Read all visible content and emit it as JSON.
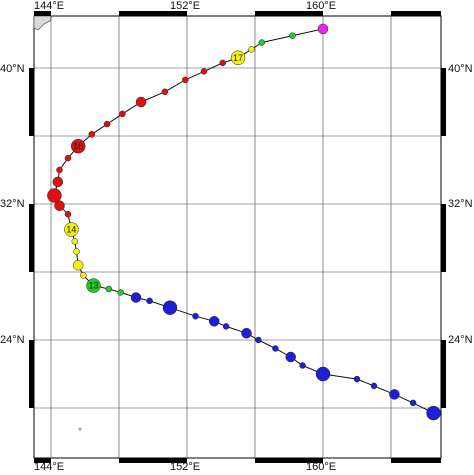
{
  "map": {
    "lon_range": [
      144,
      167
    ],
    "lat_range": [
      18,
      43
    ],
    "lon_labels": [
      "144°E",
      "152°E",
      "160°E"
    ],
    "lat_labels": [
      "40°N",
      "32°N",
      "24°N"
    ],
    "day_labels": [
      "13",
      "14",
      "16",
      "17"
    ],
    "colors": {
      "track": "#111111",
      "grid": "#444444",
      "frame": "#000000",
      "land": "#d9d9d9",
      "stages": {
        "blue": "#1f1fd6",
        "green": "#22cc22",
        "yellow": "#f2f20d",
        "red": "#dd1111",
        "magenta": "#ee22ee"
      }
    },
    "track": [
      {
        "lon": 166.5,
        "lat": 19.7,
        "color": "blue",
        "size": 3,
        "day_label": null
      },
      {
        "lon": 165.3,
        "lat": 20.3,
        "color": "blue",
        "size": 1,
        "day_label": null
      },
      {
        "lon": 164.2,
        "lat": 20.8,
        "color": "blue",
        "size": 2,
        "day_label": null
      },
      {
        "lon": 163.0,
        "lat": 21.3,
        "color": "blue",
        "size": 1,
        "day_label": null
      },
      {
        "lon": 162.0,
        "lat": 21.7,
        "color": "blue",
        "size": 1,
        "day_label": null
      },
      {
        "lon": 160.0,
        "lat": 22.0,
        "color": "blue",
        "size": 3,
        "day_label": null
      },
      {
        "lon": 158.8,
        "lat": 22.5,
        "color": "blue",
        "size": 1,
        "day_label": null
      },
      {
        "lon": 158.1,
        "lat": 23.0,
        "color": "blue",
        "size": 2,
        "day_label": null
      },
      {
        "lon": 157.2,
        "lat": 23.5,
        "color": "blue",
        "size": 1,
        "day_label": null
      },
      {
        "lon": 156.2,
        "lat": 24.0,
        "color": "blue",
        "size": 1,
        "day_label": null
      },
      {
        "lon": 155.5,
        "lat": 24.4,
        "color": "blue",
        "size": 2,
        "day_label": null
      },
      {
        "lon": 154.3,
        "lat": 24.8,
        "color": "blue",
        "size": 1,
        "day_label": null
      },
      {
        "lon": 153.6,
        "lat": 25.1,
        "color": "blue",
        "size": 2,
        "day_label": null
      },
      {
        "lon": 152.5,
        "lat": 25.4,
        "color": "blue",
        "size": 1,
        "day_label": null
      },
      {
        "lon": 151.0,
        "lat": 25.9,
        "color": "blue",
        "size": 3,
        "day_label": null
      },
      {
        "lon": 149.8,
        "lat": 26.3,
        "color": "blue",
        "size": 1,
        "day_label": null
      },
      {
        "lon": 149.0,
        "lat": 26.5,
        "color": "blue",
        "size": 2,
        "day_label": null
      },
      {
        "lon": 148.1,
        "lat": 26.8,
        "color": "green",
        "size": 1,
        "day_label": null
      },
      {
        "lon": 147.4,
        "lat": 27.0,
        "color": "green",
        "size": 1,
        "day_label": null
      },
      {
        "lon": 146.5,
        "lat": 27.2,
        "color": "green",
        "size": 3,
        "day_label": "13"
      },
      {
        "lon": 145.9,
        "lat": 27.8,
        "color": "yellow",
        "size": 1,
        "day_label": null
      },
      {
        "lon": 145.6,
        "lat": 28.4,
        "color": "yellow",
        "size": 2,
        "day_label": null
      },
      {
        "lon": 145.5,
        "lat": 29.2,
        "color": "yellow",
        "size": 1,
        "day_label": null
      },
      {
        "lon": 145.4,
        "lat": 29.8,
        "color": "yellow",
        "size": 1,
        "day_label": null
      },
      {
        "lon": 145.2,
        "lat": 30.5,
        "color": "yellow",
        "size": 3,
        "day_label": "14"
      },
      {
        "lon": 145.0,
        "lat": 31.4,
        "color": "red",
        "size": 1,
        "day_label": null
      },
      {
        "lon": 144.5,
        "lat": 31.9,
        "color": "red",
        "size": 2,
        "day_label": null
      },
      {
        "lon": 144.2,
        "lat": 32.5,
        "color": "red",
        "size": 3,
        "day_label": null
      },
      {
        "lon": 144.4,
        "lat": 33.3,
        "color": "red",
        "size": 2,
        "day_label": null
      },
      {
        "lon": 144.5,
        "lat": 34.0,
        "color": "red",
        "size": 1,
        "day_label": null
      },
      {
        "lon": 145.0,
        "lat": 34.7,
        "color": "red",
        "size": 1,
        "day_label": null
      },
      {
        "lon": 145.6,
        "lat": 35.4,
        "color": "red",
        "size": 3,
        "day_label": "16"
      },
      {
        "lon": 146.4,
        "lat": 36.1,
        "color": "red",
        "size": 1,
        "day_label": null
      },
      {
        "lon": 147.3,
        "lat": 36.7,
        "color": "red",
        "size": 1,
        "day_label": null
      },
      {
        "lon": 148.2,
        "lat": 37.3,
        "color": "red",
        "size": 1,
        "day_label": null
      },
      {
        "lon": 149.3,
        "lat": 38.0,
        "color": "red",
        "size": 2,
        "day_label": null
      },
      {
        "lon": 150.7,
        "lat": 38.6,
        "color": "red",
        "size": 1,
        "day_label": null
      },
      {
        "lon": 151.9,
        "lat": 39.3,
        "color": "red",
        "size": 1,
        "day_label": null
      },
      {
        "lon": 153.0,
        "lat": 39.8,
        "color": "red",
        "size": 1,
        "day_label": null
      },
      {
        "lon": 154.1,
        "lat": 40.3,
        "color": "red",
        "size": 1,
        "day_label": null
      },
      {
        "lon": 155.0,
        "lat": 40.6,
        "color": "yellow",
        "size": 3,
        "day_label": "17"
      },
      {
        "lon": 155.8,
        "lat": 41.1,
        "color": "yellow",
        "size": 1,
        "day_label": null
      },
      {
        "lon": 156.4,
        "lat": 41.5,
        "color": "green",
        "size": 1,
        "day_label": null
      },
      {
        "lon": 158.2,
        "lat": 41.9,
        "color": "green",
        "size": 1,
        "day_label": null
      },
      {
        "lon": 160.0,
        "lat": 42.3,
        "color": "magenta",
        "size": 2,
        "day_label": null
      }
    ]
  }
}
